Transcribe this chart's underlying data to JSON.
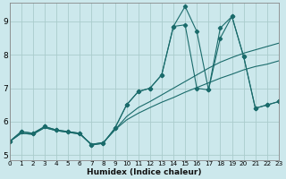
{
  "xlabel": "Humidex (Indice chaleur)",
  "bg_color": "#cce8ec",
  "grid_color": "#aacccc",
  "line_color": "#1a6b6b",
  "xlim": [
    0,
    23
  ],
  "ylim": [
    4.85,
    9.55
  ],
  "xticks": [
    0,
    1,
    2,
    3,
    4,
    5,
    6,
    7,
    8,
    9,
    10,
    11,
    12,
    13,
    14,
    15,
    16,
    17,
    18,
    19,
    20,
    21,
    22,
    23
  ],
  "yticks": [
    5,
    6,
    7,
    8,
    9
  ],
  "series": [
    [
      5.4,
      5.7,
      5.65,
      5.85,
      5.75,
      5.7,
      5.65,
      5.3,
      5.35,
      5.8,
      6.5,
      6.9,
      7.0,
      7.4,
      8.85,
      8.9,
      7.0,
      6.95,
      8.8,
      9.15,
      7.95,
      6.4,
      6.5,
      6.6
    ],
    [
      5.4,
      5.7,
      5.65,
      5.85,
      5.75,
      5.7,
      5.65,
      5.3,
      5.35,
      5.8,
      6.5,
      6.9,
      7.0,
      7.4,
      8.85,
      9.45,
      8.7,
      6.95,
      8.5,
      9.15,
      7.95,
      6.4,
      6.5,
      6.6
    ],
    [
      5.4,
      5.65,
      5.62,
      5.82,
      5.73,
      5.68,
      5.63,
      5.32,
      5.37,
      5.75,
      6.15,
      6.42,
      6.6,
      6.8,
      7.0,
      7.2,
      7.4,
      7.6,
      7.78,
      7.92,
      8.05,
      8.15,
      8.25,
      8.35
    ],
    [
      5.4,
      5.65,
      5.62,
      5.82,
      5.73,
      5.68,
      5.63,
      5.32,
      5.37,
      5.75,
      6.05,
      6.25,
      6.42,
      6.58,
      6.72,
      6.88,
      7.02,
      7.16,
      7.3,
      7.42,
      7.55,
      7.65,
      7.72,
      7.82
    ]
  ]
}
